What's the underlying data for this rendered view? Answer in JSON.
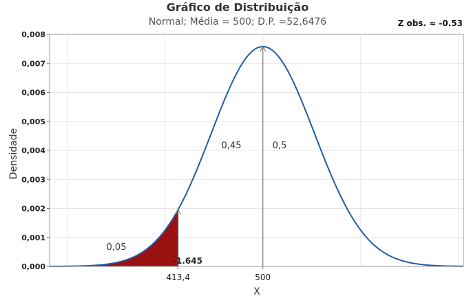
{
  "chart_data": {
    "type": "area",
    "title": "Gráfico de Distribuição",
    "subtitle": "Normal; Média = 500; D.P. =52,6476",
    "xlabel": "X",
    "ylabel": "Densidade",
    "distribution": {
      "name": "Normal",
      "mean": 500,
      "sd": 52.6476
    },
    "xlim": [
      282,
      705
    ],
    "ylim": [
      0,
      0.008
    ],
    "y_ticks": [
      "0,000",
      "0,001",
      "0,002",
      "0,003",
      "0,004",
      "0,005",
      "0,006",
      "0,007",
      "0,008"
    ],
    "y_tick_values": [
      0,
      0.001,
      0.002,
      0.003,
      0.004,
      0.005,
      0.006,
      0.007,
      0.008
    ],
    "x_ticks": [
      {
        "value": 413.4,
        "label": "413,4"
      },
      {
        "value": 500,
        "label": "500"
      }
    ],
    "shaded_region": {
      "from": 282,
      "to": 413.4,
      "probability_label": "0,05",
      "color": "#9b1111"
    },
    "reference_lines": [
      {
        "x": 413.4,
        "label": "-1.645"
      },
      {
        "x": 500
      }
    ],
    "region_labels": [
      {
        "text": "0,45",
        "side": "left-of-mean"
      },
      {
        "text": "0,5",
        "side": "right-of-mean"
      }
    ],
    "z_obs_label": "Z obs. ≈ -0.53",
    "curve_color": "#1f5ca8",
    "grid": true
  }
}
